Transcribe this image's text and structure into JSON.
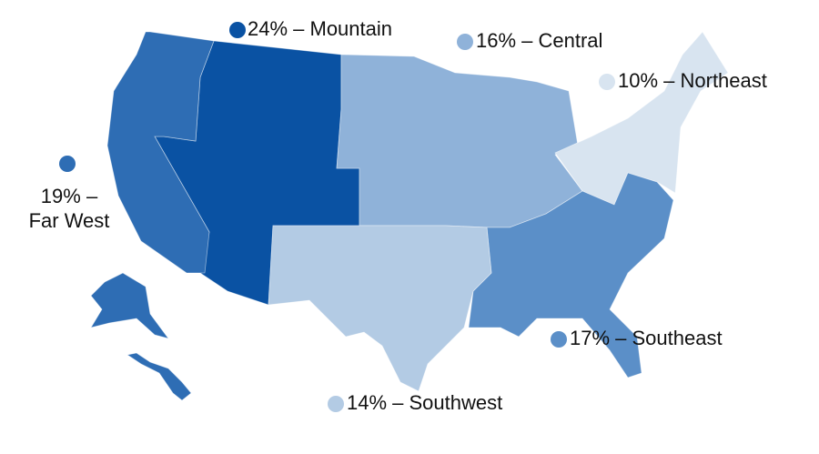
{
  "map": {
    "regions": [
      {
        "label": [
          "24% – Mountain"
        ],
        "color": "#0a52a3"
      },
      {
        "label": [
          "16% – Central"
        ],
        "color": "#8fb2d9"
      },
      {
        "label": [
          "10% – Northeast"
        ],
        "color": "#d8e4f0"
      },
      {
        "label": [
          "19% –",
          "Far West"
        ],
        "color": "#2e6db4"
      },
      {
        "label": [
          "17% – Southeast"
        ],
        "color": "#5b8fc8"
      },
      {
        "label": [
          "14% – Southwest"
        ],
        "color": "#b3cbe4"
      }
    ]
  }
}
